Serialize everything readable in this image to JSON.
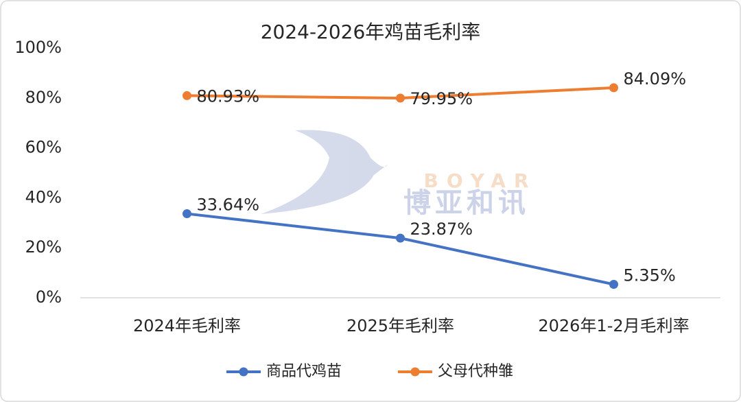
{
  "chart_data": {
    "type": "line",
    "title": "2024-2026年鸡苗毛利率",
    "categories": [
      "2024年毛利率",
      "2025年毛利率",
      "2026年1-2月毛利率"
    ],
    "series": [
      {
        "name": "商品代鸡苗",
        "color": "#4472c4",
        "values": [
          33.64,
          23.87,
          5.35
        ],
        "value_labels": [
          "33.64%",
          "23.87%",
          "5.35%"
        ]
      },
      {
        "name": "父母代种雏",
        "color": "#ed7d31",
        "values": [
          80.93,
          79.95,
          84.09
        ],
        "value_labels": [
          "80.93%",
          "79.95%",
          "84.09%"
        ]
      }
    ],
    "ylim": [
      0,
      100
    ],
    "yticks": [
      {
        "value": 0,
        "label": "0%"
      },
      {
        "value": 20,
        "label": "20%"
      },
      {
        "value": 40,
        "label": "40%"
      },
      {
        "value": 60,
        "label": "60%"
      },
      {
        "value": 80,
        "label": "80%"
      },
      {
        "value": 100,
        "label": "100%"
      }
    ],
    "grid": false,
    "legend": "bottom",
    "watermark": {
      "brand": "BOYAR",
      "name": "博亚和讯"
    }
  }
}
